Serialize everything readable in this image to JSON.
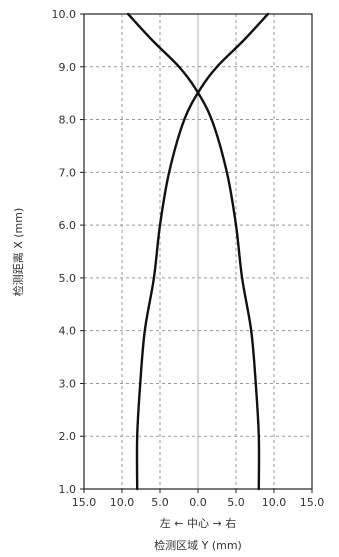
{
  "chart_data": {
    "type": "line",
    "title": "",
    "ylabel": "检测距离 X (mm)",
    "xlabel_top": "左 ← 中心 → 右",
    "xlabel_bottom": "检测区域 Y (mm)",
    "xlim": [
      -15,
      15
    ],
    "ylim": [
      1.0,
      10.0
    ],
    "x_tick_labels": [
      "15.0",
      "10.0",
      "5.0",
      "0.0",
      "5.0",
      "10.0",
      "15.0"
    ],
    "x_tick_values": [
      -15,
      -10,
      -5,
      0,
      5,
      10,
      15
    ],
    "y_ticks": [
      "1.0",
      "2.0",
      "3.0",
      "4.0",
      "5.0",
      "6.0",
      "7.0",
      "8.0",
      "9.0",
      "10.0"
    ],
    "y_tick_values": [
      1,
      2,
      3,
      4,
      5,
      6,
      7,
      8,
      9,
      10
    ],
    "grid": true,
    "line_color": "#111111",
    "grid_color": "#9a9a9a",
    "center_line_color": "#b0b0b0",
    "series": [
      {
        "points": [
          [
            -8.0,
            1.0
          ],
          [
            -8.0,
            2.0
          ],
          [
            -7.6,
            3.0
          ],
          [
            -7.0,
            4.0
          ],
          [
            -5.8,
            5.0
          ],
          [
            -5.0,
            6.0
          ],
          [
            -3.8,
            7.0
          ],
          [
            -1.8,
            8.0
          ],
          [
            0.4,
            8.6
          ],
          [
            2.5,
            9.0
          ],
          [
            6.0,
            9.5
          ],
          [
            9.2,
            10.0
          ]
        ]
      },
      {
        "points": [
          [
            8.0,
            1.0
          ],
          [
            8.0,
            2.0
          ],
          [
            7.6,
            3.0
          ],
          [
            7.0,
            4.0
          ],
          [
            5.8,
            5.0
          ],
          [
            5.0,
            6.0
          ],
          [
            3.8,
            7.0
          ],
          [
            1.8,
            8.0
          ],
          [
            -0.4,
            8.6
          ],
          [
            -2.5,
            9.0
          ],
          [
            -6.0,
            9.5
          ],
          [
            -9.2,
            10.0
          ]
        ]
      }
    ]
  }
}
